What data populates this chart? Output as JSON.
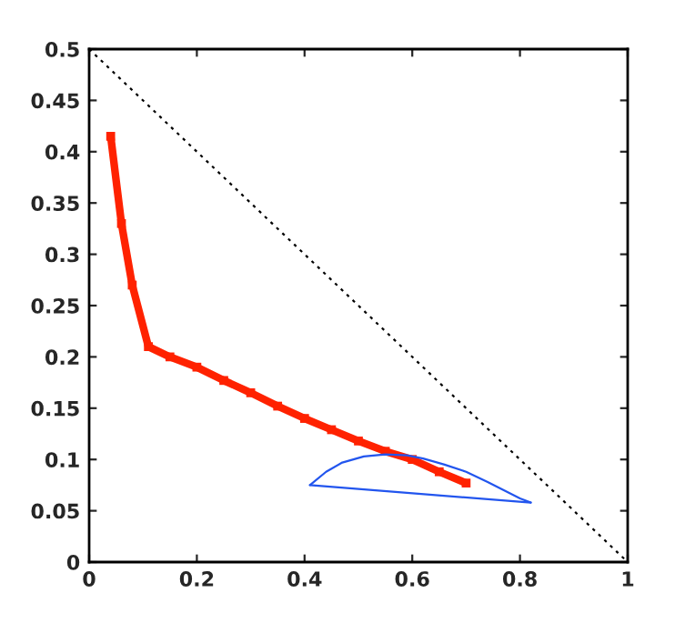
{
  "chart_data": {
    "type": "line",
    "xlim": [
      0,
      1
    ],
    "ylim": [
      0,
      0.5
    ],
    "xticks": [
      0,
      0.2,
      0.4,
      0.6,
      0.8,
      1
    ],
    "yticks": [
      0,
      0.05,
      0.1,
      0.15,
      0.2,
      0.25,
      0.3,
      0.35,
      0.4,
      0.45,
      0.5
    ],
    "grid": false,
    "legend": false,
    "series": [
      {
        "color": "#000000",
        "line_style": "dotted",
        "marker": "none",
        "x": [
          0,
          1
        ],
        "values": [
          0.5,
          0
        ]
      },
      {
        "color": "#ff2200",
        "line_style": "solid",
        "marker": "square",
        "x": [
          0.04,
          0.06,
          0.08,
          0.11,
          0.15,
          0.2,
          0.25,
          0.3,
          0.35,
          0.4,
          0.45,
          0.5,
          0.55,
          0.6,
          0.65,
          0.7
        ],
        "values": [
          0.415,
          0.33,
          0.27,
          0.21,
          0.2,
          0.19,
          0.177,
          0.165,
          0.152,
          0.14,
          0.129,
          0.118,
          0.108,
          0.1,
          0.088,
          0.077
        ]
      },
      {
        "color": "#2255ee",
        "line_style": "solid",
        "marker": "none",
        "x": [
          0.41,
          0.44,
          0.47,
          0.51,
          0.55,
          0.59,
          0.62,
          0.66,
          0.7,
          0.74,
          0.77,
          0.8,
          0.82
        ],
        "values": [
          0.075,
          0.088,
          0.097,
          0.103,
          0.105,
          0.104,
          0.101,
          0.095,
          0.088,
          0.078,
          0.07,
          0.062,
          0.058
        ]
      },
      {
        "color": "#2255ee",
        "line_style": "solid",
        "marker": "none",
        "x": [
          0.41,
          0.82
        ],
        "values": [
          0.075,
          0.058
        ]
      }
    ]
  }
}
